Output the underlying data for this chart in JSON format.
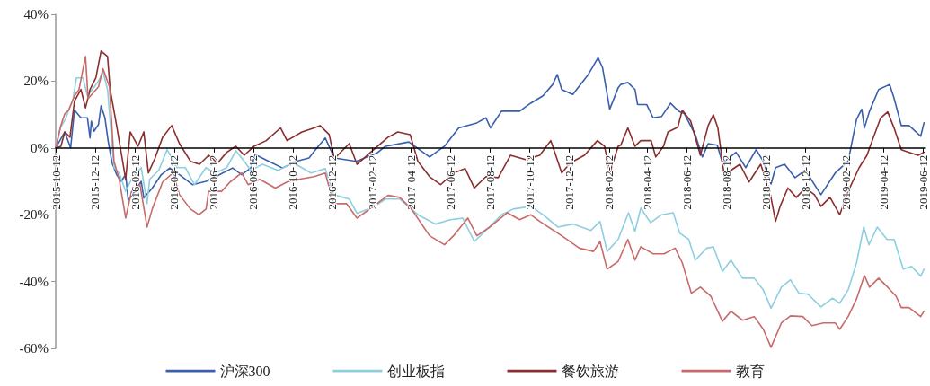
{
  "chart_data": {
    "type": "line",
    "legend": "bottom",
    "grid": false,
    "marker": "none",
    "line_style": "solid",
    "xlim": [
      "2015-10-12",
      "2019-06-14"
    ],
    "xticks": [
      "2015-10-12",
      "2015-12-12",
      "2016-02-12",
      "2016-04-12",
      "2016-06-12",
      "2016-08-12",
      "2016-10-12",
      "2016-12-12",
      "2017-02-12",
      "2017-04-12",
      "2017-06-12",
      "2017-08-12",
      "2017-10-12",
      "2017-12-12",
      "2018-02-12",
      "2018-04-12",
      "2018-06-12",
      "2018-08-12",
      "2018-10-12",
      "2018-12-12",
      "2019-02-12",
      "2019-04-12",
      "2019-06-12"
    ],
    "ylim": [
      -60,
      40
    ],
    "yticks": [
      {
        "value": -60,
        "label": "-60%"
      },
      {
        "value": -40,
        "label": "-40%"
      },
      {
        "value": -20,
        "label": "-20%"
      },
      {
        "value": 0,
        "label": "0%"
      },
      {
        "value": 20,
        "label": "20%"
      },
      {
        "value": 40,
        "label": "40%"
      }
    ],
    "series": [
      {
        "name": "沪深300",
        "color": "#3a5fad",
        "x": [
          "2015-10-12",
          "2015-10-26",
          "2015-11-04",
          "2015-11-10",
          "2015-11-20",
          "2015-11-30",
          "2015-12-04",
          "2015-12-06",
          "2015-12-10",
          "2015-12-17",
          "2015-12-21",
          "2015-12-27",
          "2016-01-01",
          "2016-01-07",
          "2016-01-14",
          "2016-01-21",
          "2016-01-28",
          "2016-02-01",
          "2016-02-11",
          "2016-02-21",
          "2016-02-25",
          "2016-03-09",
          "2016-03-23",
          "2016-04-05",
          "2016-04-20",
          "2016-05-10",
          "2016-05-31",
          "2016-06-21",
          "2016-07-11",
          "2016-07-25",
          "2016-08-08",
          "2016-08-15",
          "2016-09-05",
          "2016-09-26",
          "2016-10-17",
          "2016-11-06",
          "2016-11-14",
          "2016-12-01",
          "2016-12-15",
          "2017-01-18",
          "2017-02-19",
          "2017-03-04",
          "2017-04-09",
          "2017-05-11",
          "2017-06-03",
          "2017-06-25",
          "2017-07-23",
          "2017-08-06",
          "2017-08-13",
          "2017-08-30",
          "2017-09-27",
          "2017-10-14",
          "2017-11-02",
          "2017-11-17",
          "2017-11-24",
          "2017-12-01",
          "2017-12-18",
          "2018-01-11",
          "2018-01-26",
          "2018-02-02",
          "2018-02-13",
          "2018-02-26",
          "2018-03-02",
          "2018-03-13",
          "2018-03-24",
          "2018-03-28",
          "2018-04-11",
          "2018-04-21",
          "2018-05-04",
          "2018-05-18",
          "2018-05-25",
          "2018-06-01",
          "2018-06-08",
          "2018-06-25",
          "2018-07-06",
          "2018-07-15",
          "2018-07-29",
          "2018-08-06",
          "2018-08-27",
          "2018-09-11",
          "2018-09-27",
          "2018-10-08",
          "2018-10-20",
          "2018-10-27",
          "2018-11-10",
          "2018-11-26",
          "2018-12-12",
          "2019-01-05",
          "2019-01-27",
          "2019-02-16",
          "2019-03-01",
          "2019-03-09",
          "2019-03-13",
          "2019-03-21",
          "2019-04-04",
          "2019-04-21",
          "2019-04-28",
          "2019-05-09",
          "2019-05-21",
          "2019-06-08",
          "2019-06-13"
        ],
        "values": [
          0,
          4.8,
          0,
          11.3,
          9,
          9,
          3,
          8,
          5,
          7,
          12.6,
          9,
          2,
          -4.5,
          -8,
          -10,
          -8,
          -15.7,
          -13,
          -10,
          -15,
          -12,
          -8,
          -6,
          -8,
          -11,
          -10,
          -8,
          -6,
          -8,
          -6,
          -2,
          -4,
          -6,
          -4,
          -3,
          -1,
          3,
          -3,
          -4,
          -1.5,
          0.5,
          1.8,
          -2.7,
          0.5,
          6,
          7.5,
          9,
          6,
          11,
          11,
          13.4,
          15.6,
          19,
          22,
          17.5,
          16,
          22,
          27,
          24,
          11.6,
          18,
          19,
          19.6,
          17.5,
          13,
          13,
          9,
          9.4,
          13.4,
          12,
          10.8,
          10.3,
          4,
          -2.7,
          1.3,
          0.8,
          -4.5,
          -1.3,
          -5.9,
          -0.5,
          -4,
          -10.8,
          -5.9,
          -4.9,
          -8.9,
          -6.7,
          -14,
          -7.5,
          -4,
          8.6,
          11.6,
          6,
          11,
          17.5,
          19,
          14.8,
          6.7,
          6.7,
          3.5,
          7.5
        ]
      },
      {
        "name": "创业板指",
        "color": "#8dcfe0",
        "x": [
          "2015-10-12",
          "2015-10-19",
          "2015-10-27",
          "2015-11-08",
          "2015-11-13",
          "2015-11-23",
          "2015-11-30",
          "2015-12-17",
          "2015-12-24",
          "2015-12-31",
          "2016-01-10",
          "2016-01-18",
          "2016-01-28",
          "2016-02-06",
          "2016-02-21",
          "2016-03-01",
          "2016-03-05",
          "2016-03-19",
          "2016-04-01",
          "2016-04-16",
          "2016-04-29",
          "2016-05-13",
          "2016-05-31",
          "2016-06-14",
          "2016-07-02",
          "2016-07-16",
          "2016-07-29",
          "2016-08-08",
          "2016-08-26",
          "2016-09-19",
          "2016-10-13",
          "2016-11-09",
          "2016-12-01",
          "2016-12-14",
          "2017-01-07",
          "2017-01-19",
          "2017-02-15",
          "2017-03-04",
          "2017-03-26",
          "2017-04-23",
          "2017-05-20",
          "2017-06-12",
          "2017-07-01",
          "2017-07-19",
          "2017-08-06",
          "2017-08-30",
          "2017-09-17",
          "2017-10-14",
          "2017-11-02",
          "2017-11-25",
          "2017-12-18",
          "2018-01-15",
          "2018-01-29",
          "2018-02-09",
          "2018-02-26",
          "2018-03-14",
          "2018-03-24",
          "2018-04-02",
          "2018-04-17",
          "2018-05-04",
          "2018-05-22",
          "2018-06-01",
          "2018-06-15",
          "2018-06-25",
          "2018-07-13",
          "2018-07-23",
          "2018-08-06",
          "2018-08-19",
          "2018-09-06",
          "2018-09-24",
          "2018-10-08",
          "2018-10-20",
          "2018-11-05",
          "2018-11-19",
          "2018-12-02",
          "2018-12-16",
          "2019-01-05",
          "2019-01-23",
          "2019-02-03",
          "2019-02-16",
          "2019-03-01",
          "2019-03-12",
          "2019-03-20",
          "2019-04-02",
          "2019-04-17",
          "2019-04-28",
          "2019-05-12",
          "2019-05-25",
          "2019-06-08",
          "2019-06-13"
        ],
        "values": [
          0,
          6,
          8.6,
          14.8,
          21,
          21,
          15.6,
          20,
          22.8,
          17.5,
          -5.9,
          -7.5,
          -13,
          -9.4,
          -5.9,
          -16.7,
          -9.4,
          -6.7,
          -0.5,
          -5.9,
          -5.9,
          -11,
          -5.9,
          -7.5,
          -5.9,
          -0.8,
          -4,
          -6.7,
          -4.9,
          -6.7,
          -4.5,
          -7.5,
          -6.2,
          -14,
          -15.3,
          -19.6,
          -17.5,
          -15.3,
          -15.3,
          -20,
          -22.8,
          -21.5,
          -21,
          -28,
          -24.7,
          -20,
          -18.3,
          -17.5,
          -20,
          -23.7,
          -22.8,
          -24.7,
          -22,
          -31,
          -27.4,
          -19.4,
          -25,
          -18,
          -22.4,
          -20,
          -19.4,
          -25.5,
          -27.4,
          -33.6,
          -30,
          -29.6,
          -37,
          -33.6,
          -39,
          -39,
          -42.5,
          -48,
          -41.7,
          -39.5,
          -43.5,
          -43.8,
          -47.6,
          -45,
          -46.5,
          -42.5,
          -34.4,
          -23.7,
          -29,
          -23.7,
          -27.4,
          -27.4,
          -36.3,
          -35.5,
          -38.4,
          -36.3
        ]
      },
      {
        "name": "餐饮旅游",
        "color": "#8b2e2e",
        "x": [
          "2015-10-12",
          "2015-10-20",
          "2015-10-26",
          "2015-11-03",
          "2015-11-10",
          "2015-11-20",
          "2015-11-27",
          "2015-12-04",
          "2015-12-13",
          "2015-12-21",
          "2015-12-31",
          "2016-01-04",
          "2016-01-14",
          "2016-01-28",
          "2016-02-04",
          "2016-02-16",
          "2016-02-25",
          "2016-03-03",
          "2016-03-13",
          "2016-03-25",
          "2016-04-08",
          "2016-04-20",
          "2016-05-07",
          "2016-05-21",
          "2016-06-04",
          "2016-06-18",
          "2016-07-02",
          "2016-07-16",
          "2016-07-29",
          "2016-08-13",
          "2016-09-01",
          "2016-09-23",
          "2016-10-03",
          "2016-10-26",
          "2016-11-14",
          "2016-11-23",
          "2016-12-07",
          "2016-12-15",
          "2017-01-07",
          "2017-01-19",
          "2017-02-09",
          "2017-03-08",
          "2017-03-23",
          "2017-04-11",
          "2017-04-23",
          "2017-05-11",
          "2017-05-28",
          "2017-06-17",
          "2017-07-05",
          "2017-07-19",
          "2017-08-06",
          "2017-08-25",
          "2017-09-13",
          "2017-10-06",
          "2017-10-28",
          "2017-11-14",
          "2017-12-01",
          "2017-12-14",
          "2018-01-05",
          "2018-01-25",
          "2018-02-05",
          "2018-02-13",
          "2018-02-26",
          "2018-03-02",
          "2018-03-13",
          "2018-03-24",
          "2018-04-02",
          "2018-04-18",
          "2018-04-25",
          "2018-05-07",
          "2018-05-14",
          "2018-05-29",
          "2018-06-05",
          "2018-06-18",
          "2018-07-03",
          "2018-07-15",
          "2018-07-23",
          "2018-07-30",
          "2018-08-09",
          "2018-08-19",
          "2018-09-02",
          "2018-09-16",
          "2018-10-04",
          "2018-10-18",
          "2018-10-27",
          "2018-11-03",
          "2018-11-15",
          "2018-11-28",
          "2018-12-12",
          "2018-12-26",
          "2019-01-05",
          "2019-01-19",
          "2019-02-03",
          "2019-02-16",
          "2019-03-05",
          "2019-03-17",
          "2019-03-27",
          "2019-04-07",
          "2019-04-18",
          "2019-04-28",
          "2019-05-09",
          "2019-05-21",
          "2019-06-04",
          "2019-06-13"
        ],
        "values": [
          0,
          0.5,
          4.8,
          3.2,
          14,
          17.5,
          12,
          17.5,
          21,
          29,
          27.4,
          17.5,
          6.7,
          -9.4,
          4.8,
          0.5,
          4.8,
          -7.5,
          -3.2,
          3.2,
          6.7,
          1.3,
          -4,
          -4.9,
          -2.2,
          -4.5,
          -1.3,
          0.5,
          -2.2,
          0.5,
          2.2,
          6,
          2.2,
          4.8,
          6,
          6.7,
          4,
          -3.2,
          1.3,
          -4.9,
          -1.3,
          3.2,
          4.8,
          4,
          -4,
          -8.6,
          -11,
          -7.5,
          -6.2,
          -12,
          -8.6,
          -8.9,
          -2.2,
          -3.5,
          -2.2,
          2.2,
          -7.5,
          -4.5,
          -2.2,
          2.2,
          0.5,
          -7.5,
          0.5,
          0.8,
          6,
          0.5,
          2.2,
          2.2,
          -2.7,
          0.5,
          4.8,
          6.2,
          11.3,
          8,
          -2.2,
          6.7,
          9.9,
          5.9,
          -8.6,
          -6.7,
          -4.9,
          -10.2,
          -4.9,
          -13,
          -22,
          -17.5,
          -12,
          -14.8,
          -12,
          -14,
          -17.5,
          -14.8,
          -20,
          -13,
          -5.9,
          -2.2,
          3.2,
          8.9,
          10.8,
          5.9,
          -0.5,
          -1.3,
          -2.2,
          -1.3
        ]
      },
      {
        "name": "教育",
        "color": "#c96a6a",
        "x": [
          "2015-10-12",
          "2015-10-20",
          "2015-10-26",
          "2015-11-01",
          "2015-11-10",
          "2015-11-17",
          "2015-11-27",
          "2015-12-01",
          "2015-12-17",
          "2015-12-24",
          "2016-01-03",
          "2016-01-10",
          "2016-01-18",
          "2016-01-28",
          "2016-02-06",
          "2016-02-19",
          "2016-03-01",
          "2016-03-09",
          "2016-03-25",
          "2016-04-10",
          "2016-04-20",
          "2016-05-07",
          "2016-05-20",
          "2016-05-31",
          "2016-06-04",
          "2016-06-24",
          "2016-07-07",
          "2016-07-25",
          "2016-08-04",
          "2016-08-22",
          "2016-09-15",
          "2016-10-03",
          "2016-10-21",
          "2016-11-14",
          "2016-12-01",
          "2016-12-14",
          "2017-01-03",
          "2017-01-19",
          "2017-02-04",
          "2017-03-08",
          "2017-03-26",
          "2017-04-13",
          "2017-05-11",
          "2017-06-03",
          "2017-06-17",
          "2017-07-09",
          "2017-07-23",
          "2017-08-12",
          "2017-09-08",
          "2017-09-27",
          "2017-10-14",
          "2017-10-28",
          "2017-12-01",
          "2017-12-28",
          "2018-01-19",
          "2018-01-29",
          "2018-02-09",
          "2018-02-26",
          "2018-03-13",
          "2018-03-24",
          "2018-04-02",
          "2018-04-21",
          "2018-05-08",
          "2018-05-25",
          "2018-06-05",
          "2018-06-19",
          "2018-07-03",
          "2018-07-19",
          "2018-08-06",
          "2018-08-19",
          "2018-09-06",
          "2018-09-24",
          "2018-10-08",
          "2018-10-20",
          "2018-11-05",
          "2018-11-19",
          "2018-12-08",
          "2018-12-22",
          "2019-01-09",
          "2019-01-27",
          "2019-02-03",
          "2019-02-16",
          "2019-03-01",
          "2019-03-13",
          "2019-03-21",
          "2019-04-04",
          "2019-04-18",
          "2019-05-01",
          "2019-05-09",
          "2019-05-21",
          "2019-06-08",
          "2019-06-13"
        ],
        "values": [
          0,
          6.7,
          10.2,
          11.3,
          15.6,
          17.5,
          27.4,
          14.8,
          18.3,
          23.7,
          18.3,
          -4,
          -9.4,
          -21,
          -13,
          -11,
          -23.7,
          -18.3,
          -10.2,
          -7.5,
          -14,
          -18.3,
          -20,
          -18.3,
          -13,
          -13,
          -10.2,
          -7.5,
          -11,
          -9.4,
          -12,
          -10.2,
          -9.4,
          -8.6,
          -7.5,
          -16.7,
          -16.7,
          -21,
          -18.8,
          -14.2,
          -14.8,
          -18.3,
          -26.3,
          -29,
          -26.3,
          -21,
          -26.3,
          -23.7,
          -19.4,
          -21.5,
          -20,
          -22,
          -26.3,
          -30,
          -31,
          -28,
          -36.3,
          -34,
          -27.4,
          -33.6,
          -29.6,
          -31.7,
          -31.7,
          -30,
          -34.4,
          -43.5,
          -41.7,
          -44.4,
          -51.9,
          -48.9,
          -51.6,
          -50.5,
          -54.3,
          -59.7,
          -52.4,
          -50.3,
          -50.5,
          -53.2,
          -52.4,
          -52.4,
          -54.3,
          -50.5,
          -45.2,
          -38.2,
          -41.7,
          -39,
          -41.7,
          -44.4,
          -47.8,
          -47.8,
          -50.5,
          -48.9
        ]
      }
    ]
  }
}
